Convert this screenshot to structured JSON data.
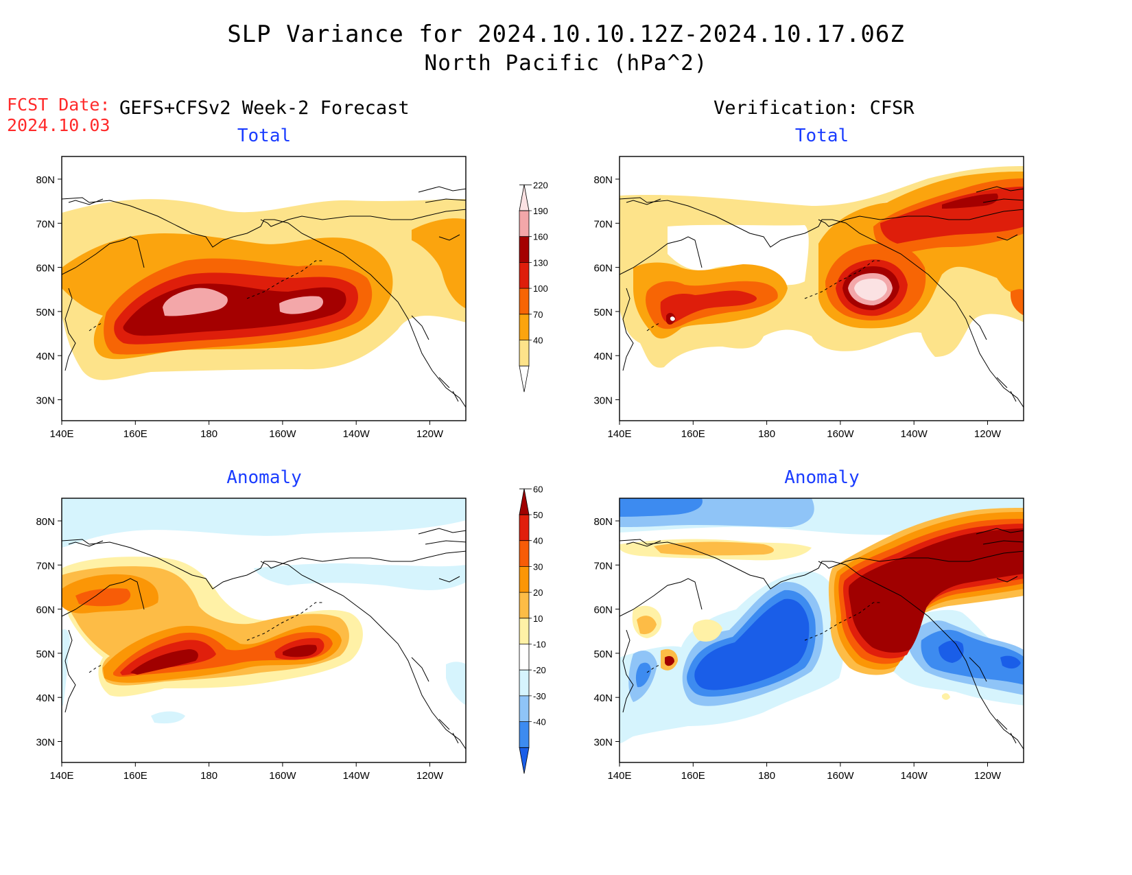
{
  "title": {
    "line1": "SLP Variance for 2024.10.10.12Z-2024.10.17.06Z",
    "line2": "North Pacific (hPa^2)"
  },
  "fcst_date": {
    "label": "FCST Date:",
    "value": "2024.10.03"
  },
  "headers": {
    "forecast": "GEFS+CFSv2 Week-2 Forecast",
    "verification": "Verification: CFSR"
  },
  "panels": {
    "fc_total": {
      "subtitle": "Total"
    },
    "vf_total": {
      "subtitle": "Total"
    },
    "fc_anom": {
      "subtitle": "Anomaly"
    },
    "vf_anom": {
      "subtitle": "Anomaly"
    }
  },
  "axes": {
    "lat_ticks": [
      "80N",
      "70N",
      "60N",
      "50N",
      "40N",
      "30N"
    ],
    "lon_ticks": [
      "140E",
      "160E",
      "180",
      "160W",
      "140W",
      "120W"
    ]
  },
  "colorbar_total": {
    "levels": [
      "40",
      "70",
      "100",
      "130",
      "160",
      "190",
      "220"
    ],
    "colors": [
      "#ffffff",
      "#fde38a",
      "#fba40e",
      "#f76505",
      "#de1e0b",
      "#a40000",
      "#f3a7a9",
      "#fbe2e3"
    ]
  },
  "colorbar_anomaly": {
    "levels": [
      "-40",
      "-30",
      "-20",
      "-10",
      "10",
      "20",
      "30",
      "40",
      "50",
      "60"
    ],
    "colors": [
      "#1a5ee8",
      "#3d8bf0",
      "#8fc4f7",
      "#d6f4fd",
      "#ffffff",
      "#fff1a6",
      "#fdbc46",
      "#fb9606",
      "#f75c07",
      "#e01f0c",
      "#a00000"
    ]
  }
}
